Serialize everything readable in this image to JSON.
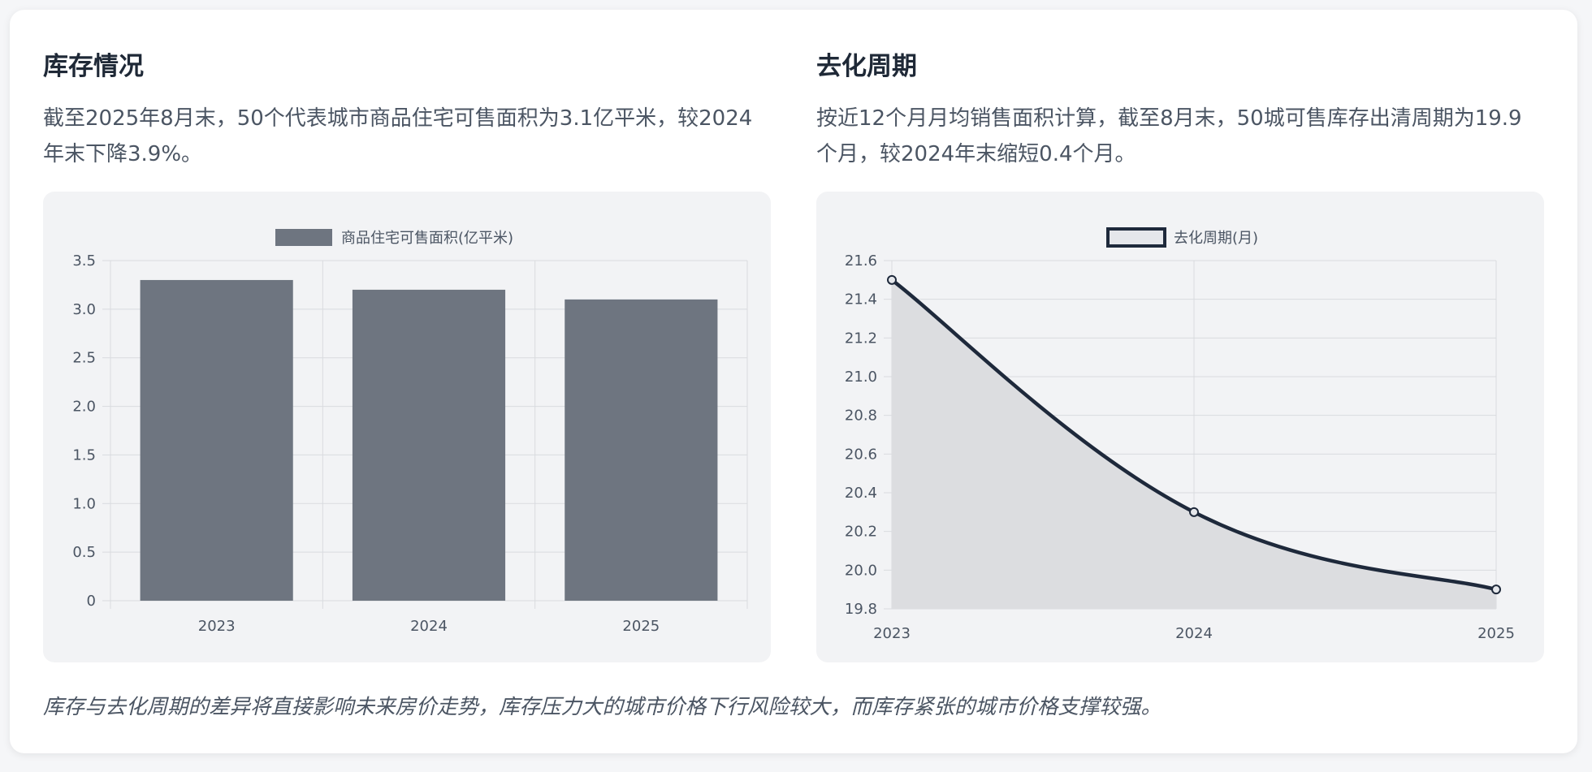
{
  "inventory": {
    "title": "库存情况",
    "description": "截至2025年8月末，50个代表城市商品住宅可售面积为3.1亿平米，较2024年末下降3.9%。"
  },
  "cycle": {
    "title": "去化周期",
    "description": "按近12个月月均销售面积计算，截至8月末，50城可售库存出清周期为19.9个月，较2024年末缩短0.4个月。"
  },
  "footer_note": "库存与去化周期的差异将直接影响未来房价走势，库存压力大的城市价格下行风险较大，而库存紧张的城市价格支撑较强。",
  "chart_data": [
    {
      "type": "bar",
      "categories": [
        "2023",
        "2024",
        "2025"
      ],
      "series": [
        {
          "name": "商品住宅可售面积(亿平米)",
          "values": [
            3.3,
            3.2,
            3.1
          ],
          "color": "#6e7580"
        }
      ],
      "ylim": [
        0,
        3.5
      ],
      "yticks": [
        0,
        0.5,
        1.0,
        1.5,
        2.0,
        2.5,
        3.0,
        3.5
      ],
      "ytick_labels": [
        "0",
        "0.5",
        "1.0",
        "1.5",
        "2.0",
        "2.5",
        "3.0",
        "3.5"
      ],
      "legend": "top-center",
      "grid": true
    },
    {
      "type": "area",
      "categories": [
        "2023",
        "2024",
        "2025"
      ],
      "series": [
        {
          "name": "去化周期(月)",
          "values": [
            21.5,
            20.3,
            19.9
          ],
          "color": "#1e293b",
          "fill": "#dcdde0"
        }
      ],
      "ylim": [
        19.8,
        21.6
      ],
      "yticks": [
        19.8,
        20.0,
        20.2,
        20.4,
        20.6,
        20.8,
        21.0,
        21.2,
        21.4,
        21.6
      ],
      "ytick_labels": [
        "19.8",
        "20.0",
        "20.2",
        "20.4",
        "20.6",
        "20.8",
        "21.0",
        "21.2",
        "21.4",
        "21.6"
      ],
      "legend": "top-center",
      "grid": true
    }
  ]
}
